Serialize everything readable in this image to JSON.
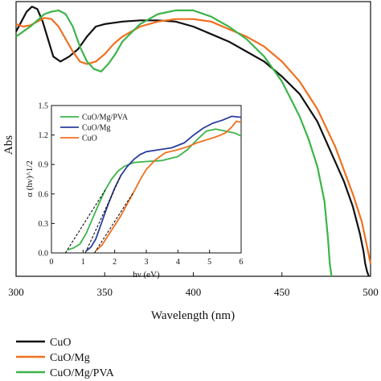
{
  "chart_data": [
    {
      "type": "line",
      "xlabel": "Wavelength (nm)",
      "ylabel": "Abs",
      "xlim": [
        300,
        500
      ],
      "ylim": [
        0,
        1.1
      ],
      "xticks": [
        "300",
        "350",
        "400",
        "450",
        "500"
      ],
      "y_tick_labels_shown": false,
      "legend_position": "bottom-left",
      "series": [
        {
          "name": "CuO",
          "color": "#111111",
          "x": [
            300,
            303,
            306,
            309,
            312,
            315,
            318,
            321,
            325,
            330,
            335,
            340,
            345,
            350,
            360,
            370,
            380,
            390,
            400,
            410,
            420,
            430,
            440,
            450,
            460,
            470,
            480,
            485,
            490,
            494,
            496,
            497,
            498,
            499
          ],
          "y": [
            0.98,
            1.02,
            1.06,
            1.08,
            1.07,
            1.02,
            0.95,
            0.88,
            0.86,
            0.88,
            0.91,
            0.96,
            1.0,
            1.01,
            1.02,
            1.025,
            1.025,
            1.02,
            1.0,
            0.97,
            0.94,
            0.9,
            0.86,
            0.8,
            0.73,
            0.62,
            0.46,
            0.38,
            0.28,
            0.17,
            0.1,
            0.05,
            0.02,
            0.0
          ]
        },
        {
          "name": "CuO/Mg",
          "color": "#f07020",
          "x": [
            300,
            304,
            308,
            312,
            316,
            320,
            324,
            328,
            332,
            336,
            340,
            345,
            350,
            355,
            360,
            370,
            380,
            390,
            400,
            410,
            420,
            430,
            440,
            450,
            460,
            470,
            480,
            490,
            495,
            498,
            500
          ],
          "y": [
            1.01,
            1.0,
            1.005,
            1.02,
            1.035,
            1.03,
            1.0,
            0.95,
            0.9,
            0.86,
            0.85,
            0.86,
            0.89,
            0.93,
            0.96,
            1.0,
            1.02,
            1.03,
            1.03,
            1.02,
            0.99,
            0.96,
            0.92,
            0.86,
            0.78,
            0.67,
            0.52,
            0.33,
            0.22,
            0.12,
            0.05
          ]
        },
        {
          "name": "CuO/Mg/PVA",
          "color": "#3cb44a",
          "x": [
            300,
            304,
            308,
            312,
            316,
            320,
            324,
            328,
            332,
            336,
            340,
            344,
            348,
            352,
            356,
            360,
            370,
            380,
            390,
            400,
            410,
            420,
            430,
            440,
            450,
            460,
            465,
            470,
            474,
            476,
            477,
            478
          ],
          "y": [
            0.96,
            0.98,
            1.0,
            1.025,
            1.05,
            1.06,
            1.065,
            1.05,
            1.0,
            0.92,
            0.86,
            0.83,
            0.82,
            0.85,
            0.89,
            0.94,
            1.01,
            1.05,
            1.065,
            1.065,
            1.04,
            1.0,
            0.95,
            0.88,
            0.78,
            0.64,
            0.55,
            0.44,
            0.3,
            0.15,
            0.05,
            0.0
          ]
        }
      ]
    },
    {
      "type": "line",
      "xlabel": "hν (eV)",
      "ylabel": "α (hν)^1/2",
      "xlim": [
        0,
        6
      ],
      "ylim": [
        0,
        1.5
      ],
      "xticks": [
        "0",
        "1",
        "2",
        "3",
        "4",
        "5",
        "6"
      ],
      "yticks": [
        "0.0",
        "0.3",
        "0.6",
        "0.9",
        "1.2",
        "1.5"
      ],
      "legend_position": "top-left",
      "series": [
        {
          "name": "CuO/Mg/PVA",
          "color": "#3cb44a",
          "x": [
            0.5,
            0.7,
            0.9,
            1.1,
            1.3,
            1.5,
            1.7,
            1.9,
            2.1,
            2.3,
            2.6,
            3.0,
            3.5,
            4.0,
            4.3,
            4.6,
            4.9,
            5.2,
            5.5,
            5.8,
            6.0
          ],
          "y": [
            0.03,
            0.05,
            0.09,
            0.2,
            0.35,
            0.5,
            0.64,
            0.75,
            0.83,
            0.88,
            0.92,
            0.93,
            0.94,
            0.98,
            1.05,
            1.15,
            1.24,
            1.26,
            1.24,
            1.22,
            1.19
          ]
        },
        {
          "name": "CuO/Mg",
          "color": "#2c3e9f",
          "x": [
            1.1,
            1.25,
            1.4,
            1.6,
            1.8,
            2.0,
            2.2,
            2.4,
            2.6,
            2.8,
            3.0,
            3.4,
            3.8,
            4.2,
            4.5,
            4.8,
            5.1,
            5.4,
            5.7,
            6.0
          ],
          "y": [
            0.02,
            0.06,
            0.14,
            0.32,
            0.5,
            0.66,
            0.79,
            0.88,
            0.95,
            1.0,
            1.03,
            1.05,
            1.07,
            1.12,
            1.2,
            1.27,
            1.32,
            1.35,
            1.39,
            1.38
          ]
        },
        {
          "name": "CuO",
          "color": "#f07020",
          "x": [
            1.4,
            1.6,
            1.8,
            2.0,
            2.2,
            2.4,
            2.6,
            2.8,
            3.0,
            3.3,
            3.6,
            4.0,
            4.3,
            4.6,
            4.9,
            5.2,
            5.5,
            5.7,
            5.85,
            6.0
          ],
          "y": [
            0.02,
            0.08,
            0.18,
            0.28,
            0.38,
            0.5,
            0.62,
            0.74,
            0.85,
            0.95,
            1.02,
            1.05,
            1.08,
            1.12,
            1.15,
            1.18,
            1.22,
            1.28,
            1.34,
            1.33
          ]
        }
      ]
    }
  ]
}
